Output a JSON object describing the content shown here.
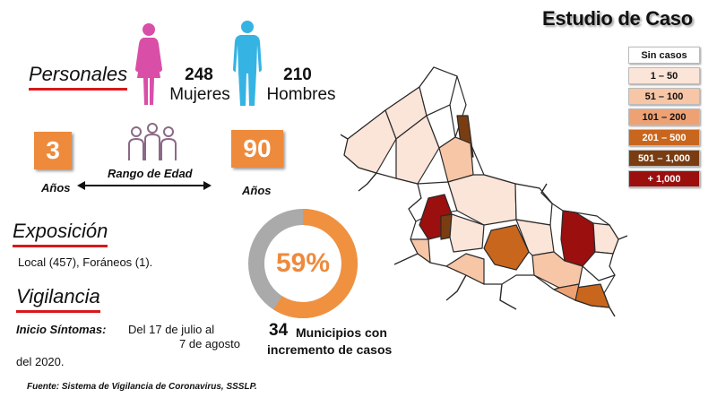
{
  "title": "Estudio de Caso",
  "personales": {
    "heading": "Personales",
    "women": {
      "count": "248",
      "label": "Mujeres",
      "color": "#d94fa8"
    },
    "men": {
      "count": "210",
      "label": "Hombres",
      "color": "#35b4e4"
    }
  },
  "age_range": {
    "min": "3",
    "max": "90",
    "min_unit": "Años",
    "max_unit": "Años",
    "label": "Rango de Edad",
    "box_color": "#ee8a3c",
    "people_icon_color": "#8a6a86"
  },
  "exposicion": {
    "heading": "Exposición",
    "text": "Local (457), Foráneos (1)."
  },
  "vigilancia": {
    "heading": "Vigilancia",
    "label": "Inicio Síntomas:",
    "text_line1": "Del 17 de julio al",
    "text_line2": "7 de agosto",
    "text_line3": "del 2020."
  },
  "percentage": {
    "value_text": "59%",
    "value": 59,
    "fill_color": "#f0913f",
    "rest_color": "#aaaaaa"
  },
  "municipios": {
    "count": "34",
    "line1": "Municipios con",
    "line2": "incremento de casos"
  },
  "source": "Fuente: Sistema de Vigilancia de Coronavirus, SSSLP.",
  "legend": [
    {
      "label": "Sin casos",
      "color": "#ffffff",
      "text_color": "#111111"
    },
    {
      "label": "1 – 50",
      "color": "#fbe4d8",
      "text_color": "#111111"
    },
    {
      "label": "51 – 100",
      "color": "#f6c6a7",
      "text_color": "#111111"
    },
    {
      "label": "101 – 200",
      "color": "#eea274",
      "text_color": "#111111"
    },
    {
      "label": "201 – 500",
      "color": "#c9661e",
      "text_color": "#ffffff"
    },
    {
      "label": "501 – 1,000",
      "color": "#7a3d11",
      "text_color": "#ffffff"
    },
    {
      "label": "+ 1,000",
      "color": "#9b0f0f",
      "text_color": "#ffffff"
    }
  ]
}
